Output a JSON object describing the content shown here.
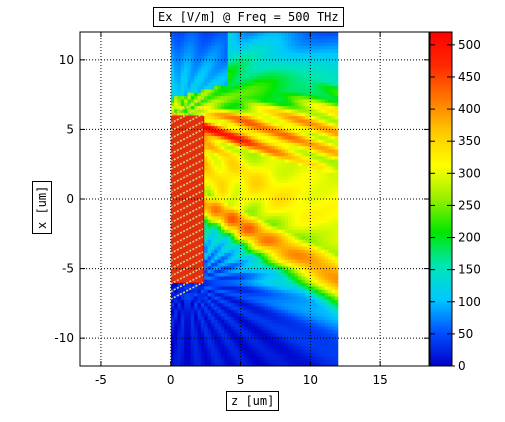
{
  "chart_data": {
    "type": "heatmap",
    "title": "Ex [V/m] @ Freq = 500 THz",
    "xlabel": "z [um]",
    "ylabel": "x [um]",
    "xlim": [
      -6.5,
      18.5
    ],
    "ylim": [
      -12,
      12
    ],
    "x_ticks": [
      -5,
      0,
      5,
      10,
      15
    ],
    "x_tick_labels": [
      "-5",
      "0",
      "5",
      "10",
      "15"
    ],
    "y_ticks": [
      10,
      5,
      0,
      -5,
      -10
    ],
    "y_tick_labels": [
      "10",
      "5",
      "0",
      "-5",
      "-10"
    ],
    "grid": true,
    "field_region": {
      "z": [
        0,
        12
      ],
      "x": [
        -12,
        12
      ]
    },
    "grating_region": {
      "z": [
        0,
        2.3
      ],
      "x": [
        -6,
        6
      ]
    },
    "colorbar": {
      "min": 0,
      "max": 520,
      "ticks": [
        500,
        450,
        400,
        350,
        300,
        250,
        200,
        150,
        100,
        50,
        0
      ],
      "tick_labels": [
        "500",
        "450",
        "400",
        "350",
        "300",
        "250",
        "200",
        "150",
        "100",
        "50",
        "0"
      ],
      "colormap": [
        "#0000c8",
        "#0050ff",
        "#00c8ff",
        "#00e6b4",
        "#00e600",
        "#96f000",
        "#ffff00",
        "#ffc800",
        "#ff7800",
        "#ff2800",
        "#ff0000"
      ]
    },
    "colors": {
      "grating_stripe": "#d9d27a",
      "grating_fill": "#e03010",
      "grid": "#000000"
    }
  }
}
